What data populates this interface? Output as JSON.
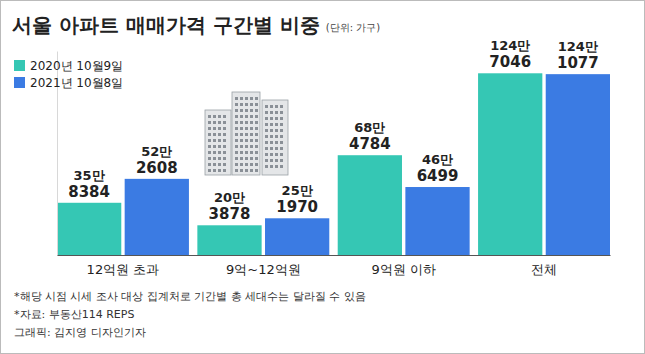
{
  "chart_data": {
    "type": "bar",
    "title": "서울 아파트 매매가격 구간별 비중",
    "subtitle": "(단위: 가구)",
    "categories": [
      "12억원 초과",
      "9억~12억원",
      "9억원 이하",
      "전체"
    ],
    "series": [
      {
        "name": "2020년 10월9일",
        "color": "#35c7b4",
        "values": [
          358384,
          203878,
          684784,
          1247046
        ],
        "value_labels": [
          "35만 8384",
          "20만 3878",
          "68만 4784",
          "124만 7046"
        ]
      },
      {
        "name": "2021년 10월8일",
        "color": "#3b7be3",
        "values": [
          522608,
          251970,
          466499,
          1241077
        ],
        "value_labels": [
          "52만 2608",
          "25만 1970",
          "46만 6499",
          "124만 1077"
        ]
      }
    ],
    "ylim": [
      0,
      1400000
    ],
    "tick_labels": "x",
    "data_labels": true,
    "legend": "top-left",
    "annotations": [
      "*해당 시점 시세 조사 대상 집계처로 기간별 총 세대수는 달라질 수 있음",
      "*자료: 부동산114 REPS",
      "그래픽: 김지영 디자인기자"
    ]
  }
}
